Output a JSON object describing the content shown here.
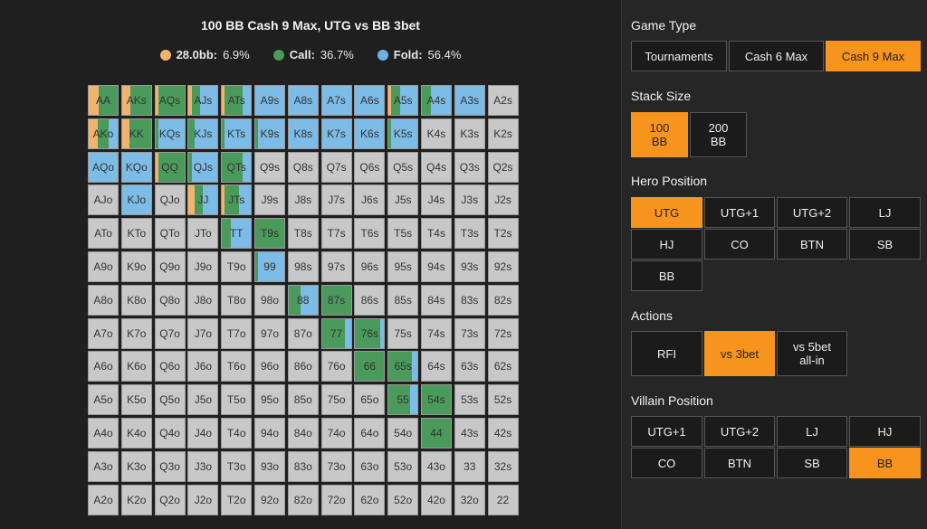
{
  "title": "100 BB Cash 9 Max, UTG vs BB 3bet",
  "legend": [
    {
      "label": "28.0bb:",
      "value": "6.9%",
      "color": "#f2b46c"
    },
    {
      "label": "Call:",
      "value": "36.7%",
      "color": "#4a9a5b"
    },
    {
      "label": "Fold:",
      "value": "56.4%",
      "color": "#6fb3e0"
    }
  ],
  "colors": {
    "raise": "#f2b46c",
    "call": "#4a9a5b",
    "fold": "#7cbce6",
    "none": "#c8c8c8",
    "accent": "#f7941d"
  },
  "grid_labels": [
    [
      "AA",
      "AKs",
      "AQs",
      "AJs",
      "ATs",
      "A9s",
      "A8s",
      "A7s",
      "A6s",
      "A5s",
      "A4s",
      "A3s",
      "A2s"
    ],
    [
      "AKo",
      "KK",
      "KQs",
      "KJs",
      "KTs",
      "K9s",
      "K8s",
      "K7s",
      "K6s",
      "K5s",
      "K4s",
      "K3s",
      "K2s"
    ],
    [
      "AQo",
      "KQo",
      "QQ",
      "QJs",
      "QTs",
      "Q9s",
      "Q8s",
      "Q7s",
      "Q6s",
      "Q5s",
      "Q4s",
      "Q3s",
      "Q2s"
    ],
    [
      "AJo",
      "KJo",
      "QJo",
      "JJ",
      "JTs",
      "J9s",
      "J8s",
      "J7s",
      "J6s",
      "J5s",
      "J4s",
      "J3s",
      "J2s"
    ],
    [
      "ATo",
      "KTo",
      "QTo",
      "JTo",
      "TT",
      "T9s",
      "T8s",
      "T7s",
      "T6s",
      "T5s",
      "T4s",
      "T3s",
      "T2s"
    ],
    [
      "A9o",
      "K9o",
      "Q9o",
      "J9o",
      "T9o",
      "99",
      "98s",
      "97s",
      "96s",
      "95s",
      "94s",
      "93s",
      "92s"
    ],
    [
      "A8o",
      "K8o",
      "Q8o",
      "J8o",
      "T8o",
      "98o",
      "88",
      "87s",
      "86s",
      "85s",
      "84s",
      "83s",
      "82s"
    ],
    [
      "A7o",
      "K7o",
      "Q7o",
      "J7o",
      "T7o",
      "97o",
      "87o",
      "77",
      "76s",
      "75s",
      "74s",
      "73s",
      "72s"
    ],
    [
      "A6o",
      "K6o",
      "Q6o",
      "J6o",
      "T6o",
      "96o",
      "86o",
      "76o",
      "66",
      "65s",
      "64s",
      "63s",
      "62s"
    ],
    [
      "A5o",
      "K5o",
      "Q5o",
      "J5o",
      "T5o",
      "95o",
      "85o",
      "75o",
      "65o",
      "55",
      "54s",
      "53s",
      "52s"
    ],
    [
      "A4o",
      "K4o",
      "Q4o",
      "J4o",
      "T4o",
      "94o",
      "84o",
      "74o",
      "64o",
      "54o",
      "44",
      "43s",
      "42s"
    ],
    [
      "A3o",
      "K3o",
      "Q3o",
      "J3o",
      "T3o",
      "93o",
      "83o",
      "73o",
      "63o",
      "53o",
      "43o",
      "33",
      "32s"
    ],
    [
      "A2o",
      "K2o",
      "Q2o",
      "J2o",
      "T2o",
      "92o",
      "82o",
      "72o",
      "62o",
      "52o",
      "42o",
      "32o",
      "22"
    ]
  ],
  "hand_strategies": {
    "AA": [
      0.35,
      0.65,
      0
    ],
    "AKs": [
      0.3,
      0.7,
      0
    ],
    "AQs": [
      0.1,
      0.9,
      0
    ],
    "AJs": [
      0.1,
      0.3,
      0.6
    ],
    "ATs": [
      0.1,
      0.6,
      0.3
    ],
    "A9s": [
      0,
      0,
      1
    ],
    "A8s": [
      0,
      0,
      1
    ],
    "A7s": [
      0,
      0,
      1
    ],
    "A6s": [
      0,
      0,
      1
    ],
    "A5s": [
      0.1,
      0.3,
      0.6
    ],
    "A4s": [
      0,
      0.3,
      0.7
    ],
    "A3s": [
      0,
      0,
      1
    ],
    "AKo": [
      0.3,
      0.4,
      0.3
    ],
    "KK": [
      0.25,
      0.75,
      0
    ],
    "KQs": [
      0,
      0.1,
      0.9
    ],
    "KJs": [
      0,
      0.2,
      0.8
    ],
    "KTs": [
      0,
      0.1,
      0.9
    ],
    "K9s": [
      0,
      0.1,
      0.9
    ],
    "K8s": [
      0,
      0,
      1
    ],
    "K7s": [
      0,
      0,
      1
    ],
    "K6s": [
      0,
      0,
      1
    ],
    "K5s": [
      0,
      0.1,
      0.9
    ],
    "AQo": [
      0,
      0,
      1
    ],
    "KQo": [
      0,
      0,
      1
    ],
    "QQ": [
      0.1,
      0.9,
      0
    ],
    "QJs": [
      0,
      0.1,
      0.9
    ],
    "QTs": [
      0,
      0.7,
      0.3
    ],
    "KJo": [
      0,
      0,
      1
    ],
    "JJ": [
      0.2,
      0.3,
      0.5
    ],
    "JTs": [
      0.1,
      0.5,
      0.4
    ],
    "TT": [
      0,
      0.3,
      0.7
    ],
    "T9s": [
      0,
      1,
      0
    ],
    "99": [
      0,
      0.1,
      0.9
    ],
    "88": [
      0,
      0.4,
      0.6
    ],
    "87s": [
      0,
      1,
      0
    ],
    "77": [
      0,
      0.8,
      0.2
    ],
    "76s": [
      0,
      0.85,
      0.15
    ],
    "66": [
      0,
      1,
      0
    ],
    "65s": [
      0,
      0.8,
      0.2
    ],
    "55": [
      0,
      0.75,
      0.25
    ],
    "54s": [
      0,
      1,
      0
    ],
    "44": [
      0,
      1,
      0
    ]
  },
  "panel": {
    "game_type": {
      "title": "Game Type",
      "options": [
        "Tournaments",
        "Cash 6 Max",
        "Cash 9 Max"
      ],
      "selected": 2
    },
    "stack_size": {
      "title": "Stack Size",
      "options": [
        "100\nBB",
        "200\nBB"
      ],
      "selected": 0
    },
    "hero_position": {
      "title": "Hero Position",
      "options": [
        "UTG",
        "UTG+1",
        "UTG+2",
        "LJ",
        "HJ",
        "CO",
        "BTN",
        "SB",
        "BB"
      ],
      "selected": 0
    },
    "actions": {
      "title": "Actions",
      "options": [
        "RFI",
        "vs 3bet",
        "vs 5bet\nall-in"
      ],
      "selected": 1
    },
    "villain_position": {
      "title": "Villain Position",
      "options": [
        "UTG+1",
        "UTG+2",
        "LJ",
        "HJ",
        "CO",
        "BTN",
        "SB",
        "BB"
      ],
      "selected": 7
    }
  }
}
